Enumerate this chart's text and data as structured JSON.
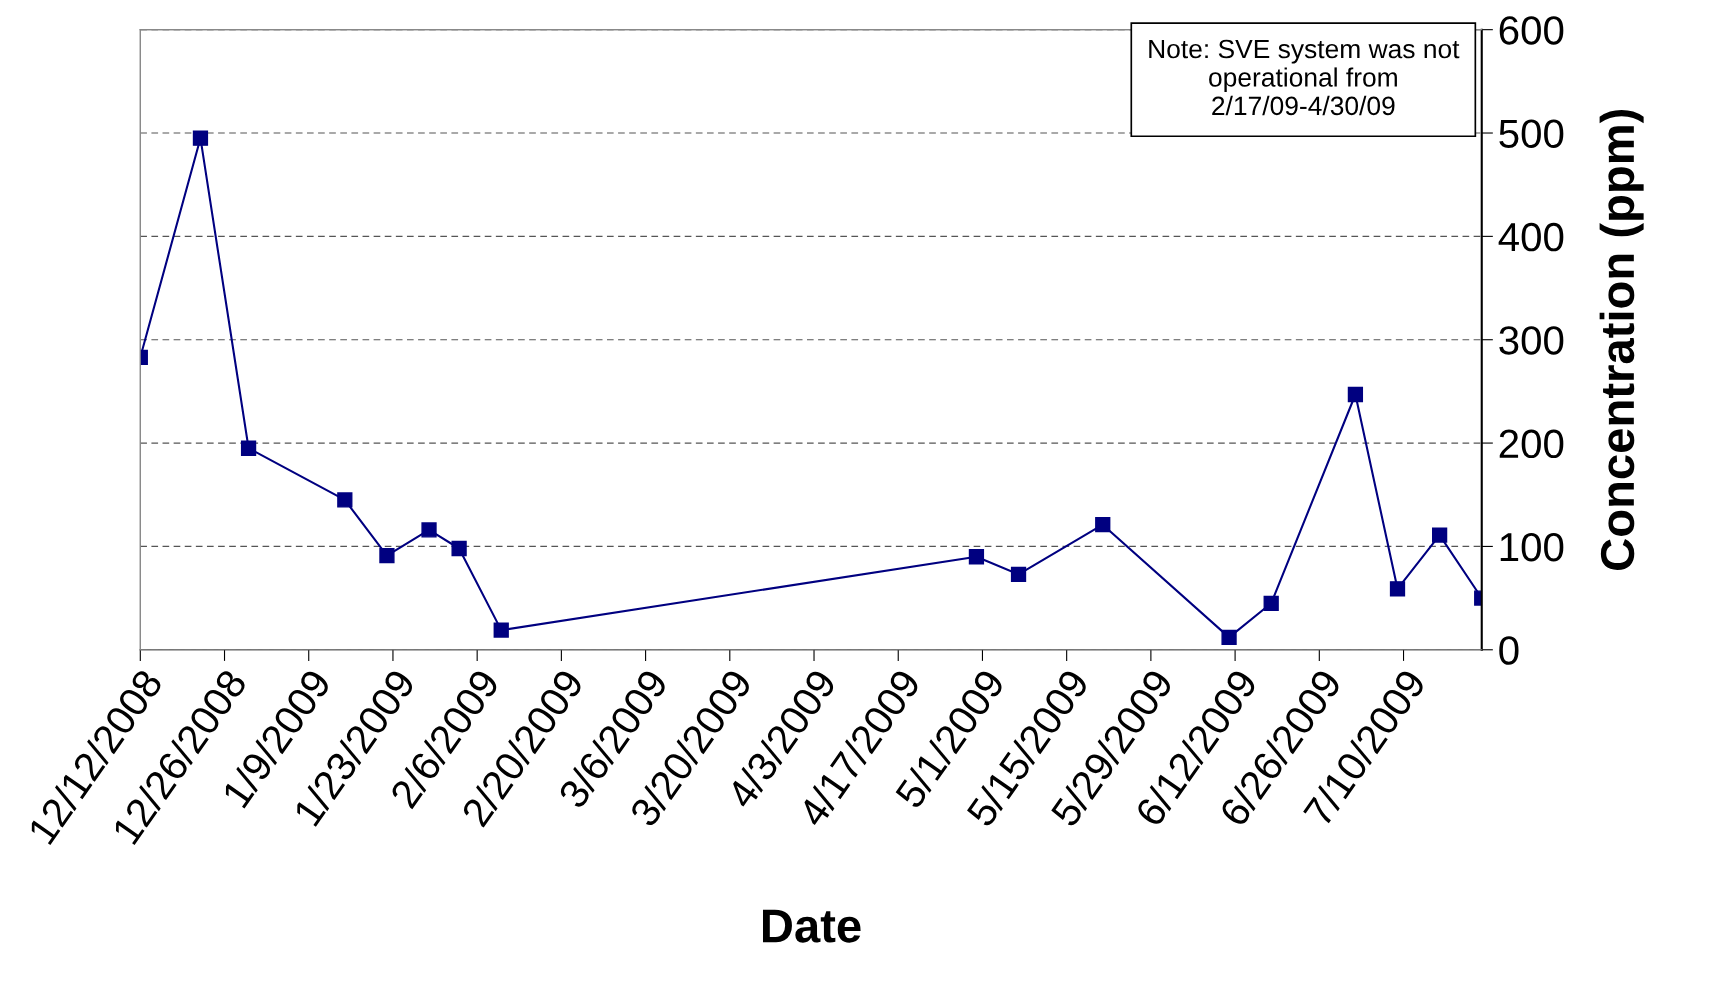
{
  "chart_data": {
    "type": "line",
    "xlabel": "Date",
    "y2label": "Concentration (ppm)",
    "annotations": [
      "Note: SVE system was not operational from 2/17/09-4/30/09"
    ],
    "series": [
      {
        "color": "#000080",
        "axis": "y2",
        "x": [
          "2008-12-12",
          "2008-12-22",
          "2008-12-30",
          "2009-01-15",
          "2009-01-22",
          "2009-01-29",
          "2009-02-03",
          "2009-02-10",
          "2009-04-30",
          "2009-05-07",
          "2009-05-21",
          "2009-06-11",
          "2009-06-18",
          "2009-07-02",
          "2009-07-09",
          "2009-07-16",
          "2009-07-23"
        ],
        "values": [
          283,
          495,
          195,
          145,
          91,
          116,
          98,
          19,
          90,
          73,
          121,
          12,
          45,
          247,
          59,
          111,
          50
        ]
      }
    ],
    "xlim": [
      "2008-12-12",
      "2009-07-23"
    ],
    "xticks": [
      {
        "value": "2008-12-12",
        "label": "12/12/2008"
      },
      {
        "value": "2008-12-26",
        "label": "12/26/2008"
      },
      {
        "value": "2009-01-09",
        "label": "1/9/2009"
      },
      {
        "value": "2009-01-23",
        "label": "1/23/2009"
      },
      {
        "value": "2009-02-06",
        "label": "2/6/2009"
      },
      {
        "value": "2009-02-20",
        "label": "2/20/2009"
      },
      {
        "value": "2009-03-06",
        "label": "3/6/2009"
      },
      {
        "value": "2009-03-20",
        "label": "3/20/2009"
      },
      {
        "value": "2009-04-03",
        "label": "4/3/2009"
      },
      {
        "value": "2009-04-17",
        "label": "4/17/2009"
      },
      {
        "value": "2009-05-01",
        "label": "5/1/2009"
      },
      {
        "value": "2009-05-15",
        "label": "5/15/2009"
      },
      {
        "value": "2009-05-29",
        "label": "5/29/2009"
      },
      {
        "value": "2009-06-12",
        "label": "6/12/2009"
      },
      {
        "value": "2009-06-26",
        "label": "6/26/2009"
      },
      {
        "value": "2009-07-10",
        "label": "7/10/2009"
      }
    ],
    "y2lim": [
      0,
      600
    ],
    "y2ticks": [
      0,
      100,
      200,
      300,
      400,
      500,
      600
    ],
    "grid": "y",
    "marker": "square",
    "line_style": "solid",
    "legend": false
  }
}
